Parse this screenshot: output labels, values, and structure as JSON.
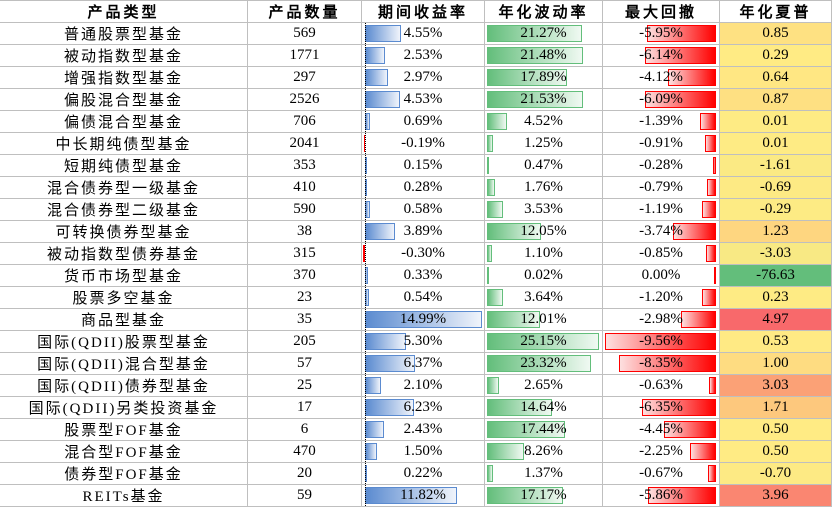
{
  "table": {
    "header": [
      "产品类型",
      "产品数量",
      "期间收益率",
      "年化波动率",
      "最大回撤",
      "年化夏普"
    ],
    "rows": [
      [
        "普通股票型基金",
        569,
        {
          "value": 4.55,
          "label": "4.55%"
        },
        {
          "value": 21.27,
          "label": "21.27%"
        },
        {
          "value": -5.95,
          "label": "-5.95%"
        },
        0.85
      ],
      [
        "被动指数型基金",
        1771,
        {
          "value": 2.53,
          "label": "2.53%"
        },
        {
          "value": 21.48,
          "label": "21.48%"
        },
        {
          "value": -6.14,
          "label": "-6.14%"
        },
        0.29
      ],
      [
        "增强指数型基金",
        297,
        {
          "value": 2.97,
          "label": "2.97%"
        },
        {
          "value": 17.89,
          "label": "17.89%"
        },
        {
          "value": -4.12,
          "label": "-4.12%"
        },
        0.64
      ],
      [
        "偏股混合型基金",
        2526,
        {
          "value": 4.53,
          "label": "4.53%"
        },
        {
          "value": 21.53,
          "label": "21.53%"
        },
        {
          "value": -6.09,
          "label": "-6.09%"
        },
        0.87
      ],
      [
        "偏债混合型基金",
        706,
        {
          "value": 0.69,
          "label": "0.69%"
        },
        {
          "value": 4.52,
          "label": "4.52%"
        },
        {
          "value": -1.39,
          "label": "-1.39%"
        },
        0.01
      ],
      [
        "中长期纯债型基金",
        2041,
        {
          "value": -0.19,
          "label": "-0.19%"
        },
        {
          "value": 1.25,
          "label": "1.25%"
        },
        {
          "value": -0.91,
          "label": "-0.91%"
        },
        0.01
      ],
      [
        "短期纯债型基金",
        353,
        {
          "value": 0.15,
          "label": "0.15%"
        },
        {
          "value": 0.47,
          "label": "0.47%"
        },
        {
          "value": -0.28,
          "label": "-0.28%"
        },
        -1.61
      ],
      [
        "混合债券型一级基金",
        410,
        {
          "value": 0.28,
          "label": "0.28%"
        },
        {
          "value": 1.76,
          "label": "1.76%"
        },
        {
          "value": -0.79,
          "label": "-0.79%"
        },
        -0.69
      ],
      [
        "混合债券型二级基金",
        590,
        {
          "value": 0.58,
          "label": "0.58%"
        },
        {
          "value": 3.53,
          "label": "3.53%"
        },
        {
          "value": -1.19,
          "label": "-1.19%"
        },
        -0.29
      ],
      [
        "可转换债券型基金",
        38,
        {
          "value": 3.89,
          "label": "3.89%"
        },
        {
          "value": 12.05,
          "label": "12.05%"
        },
        {
          "value": -3.74,
          "label": "-3.74%"
        },
        1.23
      ],
      [
        "被动指数型债券基金",
        315,
        {
          "value": -0.3,
          "label": "-0.30%"
        },
        {
          "value": 1.1,
          "label": "1.10%"
        },
        {
          "value": -0.85,
          "label": "-0.85%"
        },
        -3.03
      ],
      [
        "货币市场型基金",
        370,
        {
          "value": 0.33,
          "label": "0.33%"
        },
        {
          "value": 0.02,
          "label": "0.02%"
        },
        {
          "value": 0.0,
          "label": "0.00%"
        },
        -76.63
      ],
      [
        "股票多空基金",
        23,
        {
          "value": 0.54,
          "label": "0.54%"
        },
        {
          "value": 3.64,
          "label": "3.64%"
        },
        {
          "value": -1.2,
          "label": "-1.20%"
        },
        0.23
      ],
      [
        "商品型基金",
        35,
        {
          "value": 14.99,
          "label": "14.99%"
        },
        {
          "value": 12.01,
          "label": "12.01%"
        },
        {
          "value": -2.98,
          "label": "-2.98%"
        },
        4.97
      ],
      [
        "国际(QDII)股票型基金",
        205,
        {
          "value": 5.3,
          "label": "5.30%"
        },
        {
          "value": 25.15,
          "label": "25.15%"
        },
        {
          "value": -9.56,
          "label": "-9.56%"
        },
        0.53
      ],
      [
        "国际(QDII)混合型基金",
        57,
        {
          "value": 6.37,
          "label": "6.37%"
        },
        {
          "value": 23.32,
          "label": "23.32%"
        },
        {
          "value": -8.35,
          "label": "-8.35%"
        },
        {
          "value": 1.0,
          "label": "1.00"
        }
      ],
      [
        "国际(QDII)债券型基金",
        25,
        {
          "value": 2.1,
          "label": "2.10%"
        },
        {
          "value": 2.65,
          "label": "2.65%"
        },
        {
          "value": -0.63,
          "label": "-0.63%"
        },
        3.03
      ],
      [
        "国际(QDII)另类投资基金",
        17,
        {
          "value": 6.23,
          "label": "6.23%"
        },
        {
          "value": 14.64,
          "label": "14.64%"
        },
        {
          "value": -6.35,
          "label": "-6.35%"
        },
        1.71
      ],
      [
        "股票型FOF基金",
        6,
        {
          "value": 2.43,
          "label": "2.43%"
        },
        {
          "value": 17.44,
          "label": "17.44%"
        },
        {
          "value": -4.45,
          "label": "-4.45%"
        },
        {
          "value": 0.5,
          "label": "0.50"
        }
      ],
      [
        "混合型FOF基金",
        470,
        {
          "value": 1.5,
          "label": "1.50%"
        },
        {
          "value": 8.26,
          "label": "8.26%"
        },
        {
          "value": -2.25,
          "label": "-2.25%"
        },
        {
          "value": 0.5,
          "label": "0.50"
        }
      ],
      [
        "债券型FOF基金",
        20,
        {
          "value": 0.22,
          "label": "0.22%"
        },
        {
          "value": 1.37,
          "label": "1.37%"
        },
        {
          "value": -0.67,
          "label": "-0.67%"
        },
        {
          "value": -0.7,
          "label": "-0.70"
        }
      ],
      [
        "REITs基金",
        59,
        {
          "value": 11.82,
          "label": "11.82%"
        },
        {
          "value": 17.17,
          "label": "17.17%"
        },
        {
          "value": -5.86,
          "label": "-5.86%"
        },
        3.96
      ]
    ]
  }
}
